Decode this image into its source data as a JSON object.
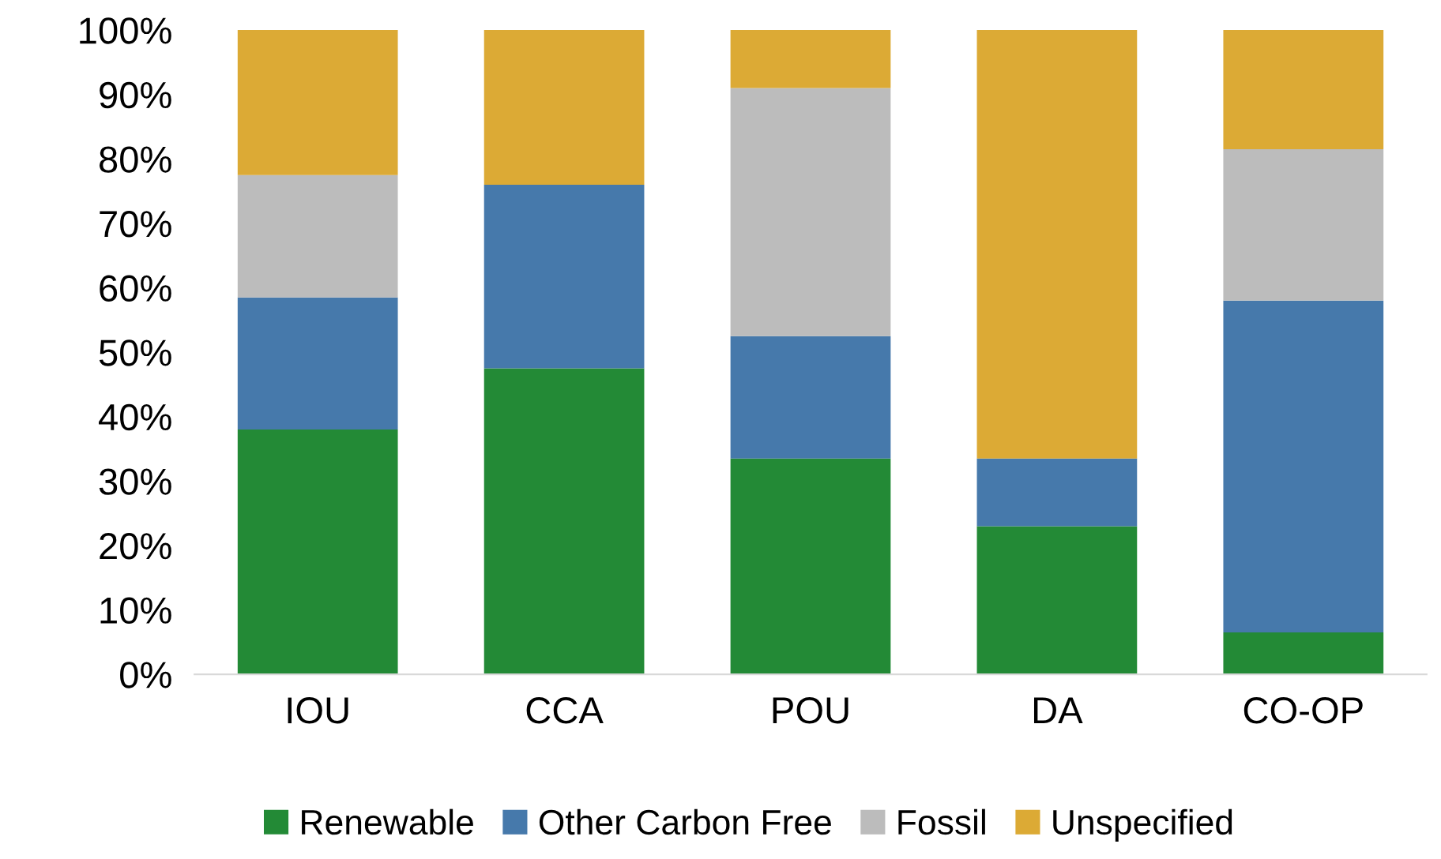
{
  "chart_data": {
    "type": "bar",
    "stacked": true,
    "categories": [
      "IOU",
      "CCA",
      "POU",
      "DA",
      "CO-OP"
    ],
    "series": [
      {
        "name": "Renewable",
        "color": "#238a36",
        "values": [
          38,
          47.5,
          33.5,
          23,
          6.5
        ]
      },
      {
        "name": "Other Carbon Free",
        "color": "#4679ab",
        "values": [
          20.5,
          28.5,
          19,
          10.5,
          51.5
        ]
      },
      {
        "name": "Fossil",
        "color": "#bcbcbc",
        "values": [
          19,
          0,
          38.5,
          0,
          23.5
        ]
      },
      {
        "name": "Unspecified",
        "color": "#dcaa35",
        "values": [
          22.5,
          24,
          9,
          66.5,
          18.5
        ]
      }
    ],
    "ylim": [
      0,
      100
    ],
    "yticks": [
      {
        "value": 0,
        "label": "0%"
      },
      {
        "value": 10,
        "label": "10%"
      },
      {
        "value": 20,
        "label": "20%"
      },
      {
        "value": 30,
        "label": "30%"
      },
      {
        "value": 40,
        "label": "40%"
      },
      {
        "value": 50,
        "label": "50%"
      },
      {
        "value": 60,
        "label": "60%"
      },
      {
        "value": 70,
        "label": "70%"
      },
      {
        "value": 80,
        "label": "80%"
      },
      {
        "value": 90,
        "label": "90%"
      },
      {
        "value": 100,
        "label": "100%"
      }
    ],
    "grid": false,
    "legend": "bottom"
  }
}
